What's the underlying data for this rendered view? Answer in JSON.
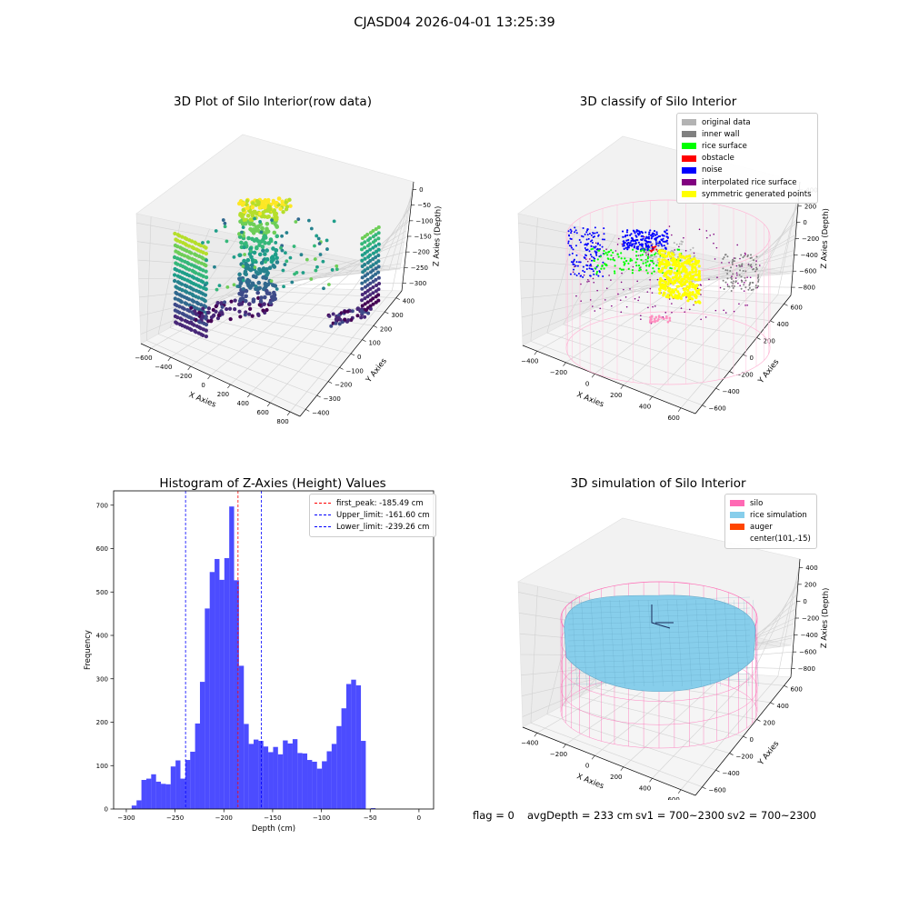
{
  "figure": {
    "suptitle": "CJASD04 2026-04-01 13:25:39",
    "footer": {
      "flag": "flag = 0",
      "avg_depth": "avgDepth = 233 cm",
      "sv1": "sv1 = 700~2300",
      "sv2": "sv2 = 700~2300"
    }
  },
  "chart_data": [
    {
      "type": "scatter",
      "title": "3D Plot of Silo Interior(row data)",
      "xlabel": "X Axies",
      "ylabel": "Y Axies",
      "zlabel": "Z Axies (Depth)",
      "xticks": [
        "−600",
        "−400",
        "−200",
        "0",
        "200",
        "400",
        "600",
        "800"
      ],
      "yticks": [
        "400",
        "300",
        "200",
        "100",
        "0",
        "−100",
        "−200",
        "−300",
        "−400"
      ],
      "zticks": [
        "0",
        "−50",
        "−100",
        "−150",
        "−200",
        "−250",
        "−300"
      ],
      "colormap": "viridis"
    },
    {
      "type": "scatter",
      "title": "3D classify of Silo Interior",
      "xlabel": "X Axies",
      "ylabel": "Y Axies",
      "zlabel": "Z Axies (Depth)",
      "xticks": [
        "−400",
        "−200",
        "0",
        "200",
        "400",
        "600"
      ],
      "yticks": [
        "600",
        "400",
        "200",
        "0",
        "−200",
        "−400",
        "−600"
      ],
      "zticks": [
        "400",
        "200",
        "0",
        "−200",
        "−400",
        "−600",
        "−800"
      ],
      "legend": [
        {
          "label": "original data",
          "color": "#b3b3b3"
        },
        {
          "label": "inner wall",
          "color": "#808080"
        },
        {
          "label": "rice surface",
          "color": "#00ff00"
        },
        {
          "label": "obstacle",
          "color": "#ff0000"
        },
        {
          "label": "noise",
          "color": "#0000ff"
        },
        {
          "label": "interpolated rice surface",
          "color": "#800080"
        },
        {
          "label": "symmetric generated points",
          "color": "#ffff00"
        }
      ]
    },
    {
      "type": "bar",
      "title": "Histogram of Z-Axies (Height) Values",
      "xlabel": "Depth (cm)",
      "ylabel": "Frequency",
      "xlim": [
        -313,
        15
      ],
      "ylim": [
        0,
        733
      ],
      "xticks": [
        -300,
        -250,
        -200,
        -150,
        -100,
        -50,
        0
      ],
      "yticks": [
        0,
        100,
        200,
        300,
        400,
        500,
        600,
        700
      ],
      "bin_start": -294.5,
      "bin_width": 5,
      "values": [
        8,
        20,
        67,
        70,
        80,
        63,
        58,
        57,
        98,
        112,
        70,
        113,
        132,
        197,
        293,
        462,
        546,
        576,
        528,
        578,
        697,
        527,
        330,
        196,
        150,
        160,
        157,
        144,
        131,
        143,
        126,
        158,
        151,
        161,
        129,
        128,
        113,
        109,
        93,
        110,
        133,
        150,
        191,
        232,
        288,
        298,
        285,
        157,
        0,
        2
      ],
      "bar_color": "#0000ff",
      "lines": [
        {
          "label": "first_peak: -185.49 cm",
          "x": -185.49,
          "color": "#ff0000"
        },
        {
          "label": "Upper_limit: -161.60 cm",
          "x": -161.6,
          "color": "#0000ff"
        },
        {
          "label": "Lower_limit: -239.26 cm",
          "x": -239.26,
          "color": "#0000ff"
        }
      ]
    },
    {
      "type": "scatter",
      "title": "3D simulation of Silo Interior",
      "xlabel": "X Axies",
      "ylabel": "Y Axies",
      "zlabel": "Z Axies (Depth)",
      "xticks": [
        "−400",
        "−200",
        "0",
        "200",
        "400",
        "600"
      ],
      "yticks": [
        "600",
        "400",
        "200",
        "0",
        "−200",
        "−400",
        "−600"
      ],
      "zticks": [
        "400",
        "200",
        "0",
        "−200",
        "−400",
        "−600",
        "−800"
      ],
      "legend": [
        {
          "label": "silo",
          "color": "#ff69b4"
        },
        {
          "label": "rice simulation",
          "color": "#87ceeb"
        },
        {
          "label": "auger",
          "color": "#ff4500"
        },
        {
          "label": "center(101,-15)",
          "color": ""
        }
      ]
    }
  ]
}
